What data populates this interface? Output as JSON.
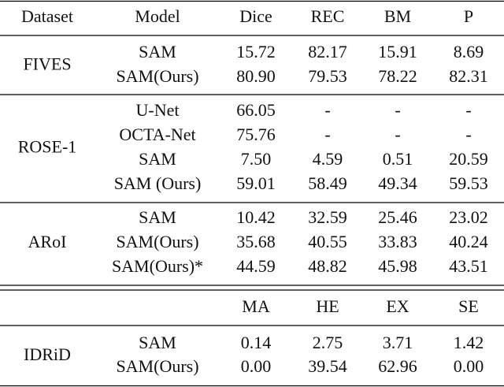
{
  "table": {
    "header": [
      "Dataset",
      "Model",
      "Dice",
      "REC",
      "BM",
      "P"
    ],
    "groups": [
      {
        "dataset": "FIVES",
        "rows": [
          [
            "SAM",
            "15.72",
            "82.17",
            "15.91",
            "8.69"
          ],
          [
            "SAM(Ours)",
            "80.90",
            "79.53",
            "78.22",
            "82.31"
          ]
        ]
      },
      {
        "dataset": "ROSE-1",
        "rows": [
          [
            "U-Net",
            "66.05",
            "-",
            "-",
            "-"
          ],
          [
            "OCTA-Net",
            "75.76",
            "-",
            "-",
            "-"
          ],
          [
            "SAM",
            "7.50",
            "4.59",
            "0.51",
            "20.59"
          ],
          [
            "SAM (Ours)",
            "59.01",
            "58.49",
            "49.34",
            "59.53"
          ]
        ]
      },
      {
        "dataset": "ARoI",
        "rows": [
          [
            "SAM",
            "10.42",
            "32.59",
            "25.46",
            "23.02"
          ],
          [
            "SAM(Ours)",
            "35.68",
            "40.55",
            "33.83",
            "40.24"
          ],
          [
            "SAM(Ours)*",
            "44.59",
            "48.82",
            "45.98",
            "43.51"
          ]
        ]
      }
    ],
    "header2": [
      "MA",
      "HE",
      "EX",
      "SE"
    ],
    "groups2": [
      {
        "dataset": "IDRiD",
        "rows": [
          [
            "SAM",
            "0.14",
            "2.75",
            "3.71",
            "1.42"
          ],
          [
            "SAM(Ours)",
            "0.00",
            "39.54",
            "62.96",
            "0.00"
          ]
        ]
      }
    ]
  }
}
